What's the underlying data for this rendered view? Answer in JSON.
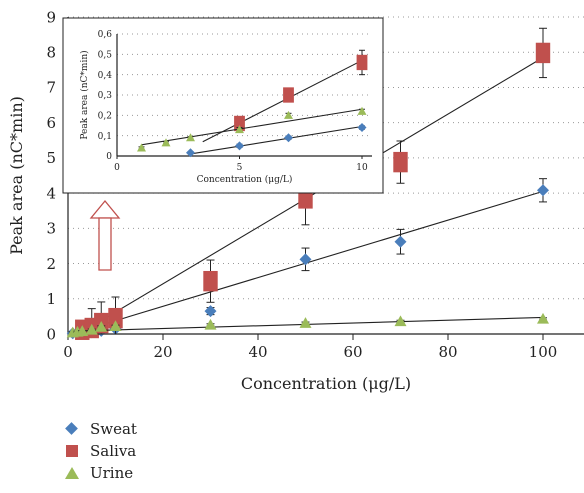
{
  "chart_data": [
    {
      "type": "scatter",
      "title": "",
      "xlabel": "Concentration (μg/L)",
      "ylabel": "Peak area (nC*min)",
      "xlim": [
        0,
        100
      ],
      "ylim": [
        0,
        9
      ],
      "xticks": [
        "0",
        "20",
        "40",
        "60",
        "80",
        "100"
      ],
      "yticks": [
        "0",
        "1",
        "2",
        "3",
        "4",
        "5",
        "6",
        "7",
        "8",
        "9"
      ],
      "grid": "horizontal dotted",
      "legend_position": "bottom-left, below plot",
      "series": [
        {
          "name": "Sweat",
          "color": "#4a7ebb",
          "marker": "diamond",
          "x": [
            1,
            2,
            3,
            5,
            7,
            10,
            30,
            50,
            70,
            100
          ],
          "y": [
            0.02,
            0.03,
            0.03,
            0.05,
            0.09,
            0.15,
            0.65,
            2.12,
            2.62,
            4.08
          ],
          "err": [
            0.02,
            0.02,
            0.02,
            0.03,
            0.03,
            0.05,
            0.1,
            0.32,
            0.35,
            0.33
          ],
          "fit": [
            [
              1,
              0.01
            ],
            [
              100,
              4.05
            ]
          ]
        },
        {
          "name": "Saliva",
          "color": "#c0504d",
          "marker": "square",
          "x": [
            3,
            5,
            7,
            10,
            30,
            50,
            70,
            100
          ],
          "y": [
            0.12,
            0.17,
            0.31,
            0.45,
            1.5,
            3.85,
            4.88,
            7.98
          ],
          "err": [
            0.12,
            0.55,
            0.6,
            0.6,
            0.6,
            0.75,
            0.6,
            0.7
          ],
          "fit": [
            [
              3,
              0.06
            ],
            [
              100,
              7.85
            ]
          ]
        },
        {
          "name": "Urine",
          "color": "#9bbb59",
          "marker": "triangle",
          "x": [
            1,
            2,
            3,
            5,
            7,
            10,
            30,
            50,
            70,
            100
          ],
          "y": [
            0.04,
            0.06,
            0.08,
            0.12,
            0.2,
            0.22,
            0.26,
            0.31,
            0.36,
            0.43
          ],
          "err": [
            0.02,
            0.02,
            0.02,
            0.02,
            0.03,
            0.03,
            0.03,
            0.03,
            0.03,
            0.03
          ],
          "fit": [
            [
              1,
              0.08
            ],
            [
              100,
              0.47
            ]
          ]
        }
      ]
    },
    {
      "type": "scatter",
      "title": "",
      "xlabel": "Concentration (μg/L)",
      "ylabel": "Peak area (nC*min)",
      "xlim": [
        0,
        10
      ],
      "ylim": [
        0,
        0.6
      ],
      "xticks": [
        "0",
        "5",
        "10"
      ],
      "yticks": [
        "0",
        "0,1",
        "0,2",
        "0,3",
        "0,4",
        "0,5",
        "0,6"
      ],
      "grid": "horizontal dotted",
      "series": [
        {
          "name": "Sweat",
          "color": "#4a7ebb",
          "marker": "diamond",
          "x": [
            3,
            5,
            7,
            10
          ],
          "y": [
            0.016,
            0.05,
            0.09,
            0.14
          ],
          "err": [
            0.005,
            0.008,
            0.008,
            0.008
          ],
          "fit": [
            [
              3,
              0.01
            ],
            [
              10,
              0.145
            ]
          ]
        },
        {
          "name": "Saliva",
          "color": "#c0504d",
          "marker": "square",
          "x": [
            5,
            7,
            10
          ],
          "y": [
            0.16,
            0.3,
            0.46
          ],
          "err": [
            0.03,
            0.03,
            0.06
          ],
          "fit": [
            [
              3.5,
              0.07
            ],
            [
              10,
              0.47
            ]
          ]
        },
        {
          "name": "Urine",
          "color": "#9bbb59",
          "marker": "triangle",
          "x": [
            1,
            2,
            3,
            5,
            7,
            10
          ],
          "y": [
            0.04,
            0.065,
            0.09,
            0.13,
            0.2,
            0.22
          ],
          "err": [
            0.005,
            0.005,
            0.005,
            0.01,
            0.01,
            0.01
          ],
          "fit": [
            [
              1,
              0.055
            ],
            [
              10,
              0.23
            ]
          ]
        }
      ]
    }
  ]
}
